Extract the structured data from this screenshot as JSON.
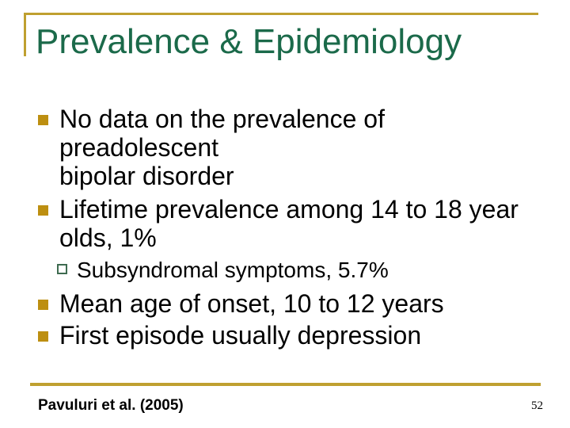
{
  "slide": {
    "title": "Prevalence & Epidemiology",
    "bullets": [
      {
        "level": 1,
        "text": "No data on the prevalence of preadolescent\nbipolar disorder"
      },
      {
        "level": 1,
        "text": "Lifetime prevalence among 14 to 18 year\nolds, 1%"
      },
      {
        "level": 2,
        "text": "Subsyndromal symptoms, 5.7%"
      },
      {
        "level": 1,
        "text": "Mean age of onset, 10 to 12 years"
      },
      {
        "level": 1,
        "text": "First episode usually depression"
      }
    ],
    "footer": {
      "citation": "Pavuluri et al. (2005)",
      "slide_number": "52"
    },
    "colors": {
      "title_green": "#1b6a4a",
      "accent_gold": "#bfa030",
      "bullet_gold": "#bd8f11",
      "sub_bullet_green": "#3e6b50",
      "text_black": "#000000",
      "background": "#ffffff"
    }
  }
}
